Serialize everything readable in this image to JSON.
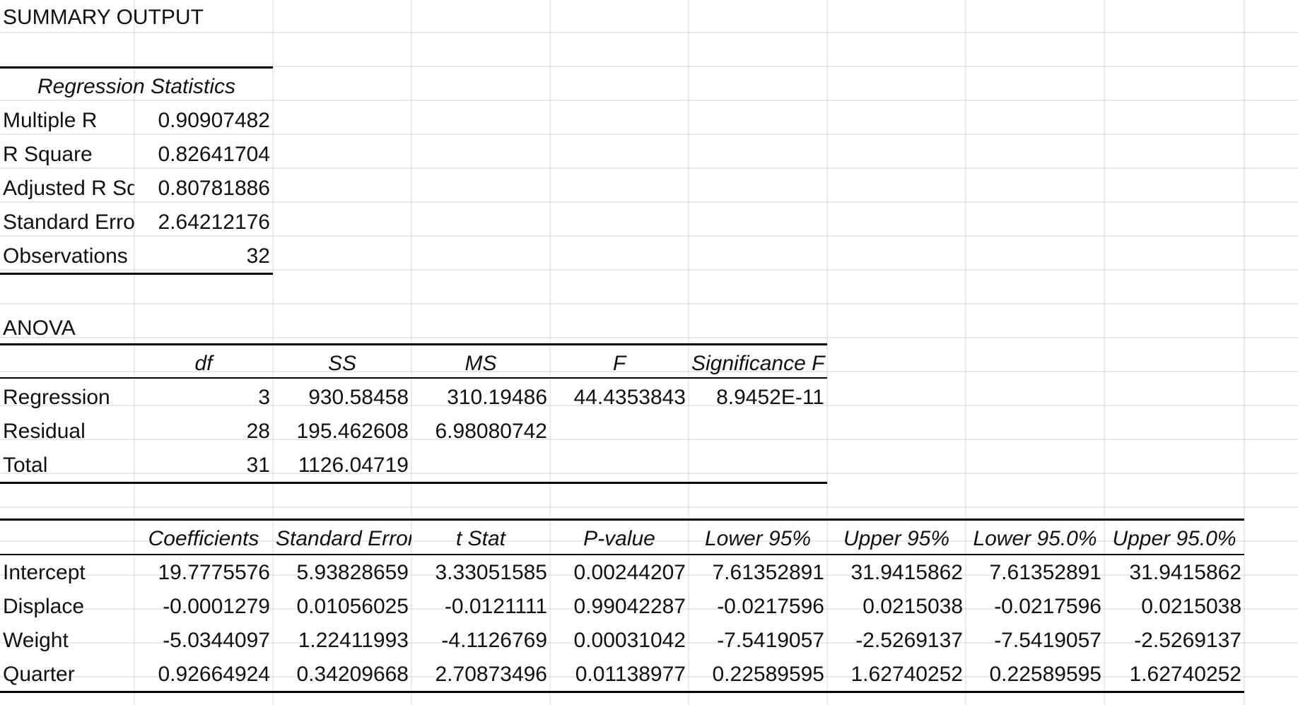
{
  "summary_title": "SUMMARY OUTPUT",
  "regression_statistics": {
    "header": "Regression Statistics",
    "rows": [
      {
        "label": "Multiple R",
        "value": "0.90907482"
      },
      {
        "label": "R Square",
        "value": "0.82641704"
      },
      {
        "label": "Adjusted R Sq",
        "value": "0.80781886"
      },
      {
        "label": "Standard Error",
        "value": "2.64212176"
      },
      {
        "label": "Observations",
        "value": "32"
      }
    ]
  },
  "anova": {
    "title": "ANOVA",
    "headers": [
      "",
      "df",
      "SS",
      "MS",
      "F",
      "Significance F"
    ],
    "rows": [
      [
        "Regression",
        "3",
        "930.58458",
        "310.19486",
        "44.4353843",
        "8.9452E-11"
      ],
      [
        "Residual",
        "28",
        "195.462608",
        "6.98080742",
        "",
        ""
      ],
      [
        "Total",
        "31",
        "1126.04719",
        "",
        "",
        ""
      ]
    ]
  },
  "coefficients": {
    "headers": [
      "",
      "Coefficients",
      "Standard Error",
      "t Stat",
      "P-value",
      "Lower 95%",
      "Upper 95%",
      "Lower 95.0%",
      "Upper 95.0%"
    ],
    "rows": [
      [
        "Intercept",
        "19.7775576",
        "5.93828659",
        "3.33051585",
        "0.00244207",
        "7.61352891",
        "31.9415862",
        "7.61352891",
        "31.9415862"
      ],
      [
        "Displace",
        "-0.0001279",
        "0.01056025",
        "-0.0121111",
        "0.99042287",
        "-0.0217596",
        "0.0215038",
        "-0.0217596",
        "0.0215038"
      ],
      [
        "Weight",
        "-5.0344097",
        "1.22411993",
        "-4.1126769",
        "0.00031042",
        "-7.5419057",
        "-2.5269137",
        "-7.5419057",
        "-2.5269137"
      ],
      [
        "Quarter",
        "0.92664924",
        "0.34209668",
        "2.70873496",
        "0.01138977",
        "0.22589595",
        "1.62740252",
        "0.22589595",
        "1.62740252"
      ]
    ]
  }
}
